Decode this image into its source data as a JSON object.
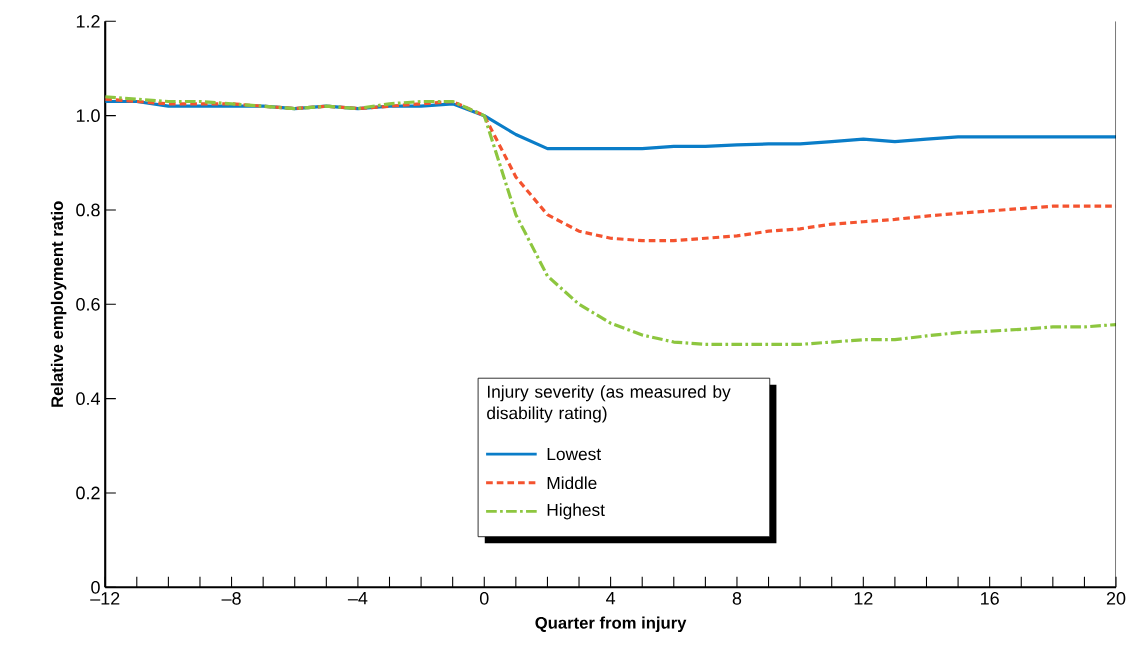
{
  "chart_data": {
    "type": "line",
    "xlabel": "Quarter from injury",
    "ylabel": "Relative employment ratio",
    "legend_title": "Injury severity (as measured by disability rating)",
    "x": [
      -12,
      -11,
      -10,
      -9,
      -8,
      -7,
      -6,
      -5,
      -4,
      -3,
      -2,
      -1,
      0,
      1,
      2,
      3,
      4,
      5,
      6,
      7,
      8,
      9,
      10,
      11,
      12,
      13,
      14,
      15,
      16,
      17,
      18,
      19,
      20
    ],
    "series": [
      {
        "name": "Lowest",
        "color": "#0a7dc8",
        "line_style": "solid",
        "values": [
          1.03,
          1.03,
          1.02,
          1.02,
          1.02,
          1.02,
          1.015,
          1.02,
          1.015,
          1.02,
          1.02,
          1.025,
          1.0,
          0.96,
          0.93,
          0.93,
          0.93,
          0.93,
          0.935,
          0.935,
          0.938,
          0.94,
          0.94,
          0.945,
          0.95,
          0.945,
          0.95,
          0.955,
          0.955,
          0.955,
          0.955,
          0.955,
          0.955
        ]
      },
      {
        "name": "Middle",
        "color": "#f4532f",
        "line_style": "dashed",
        "values": [
          1.035,
          1.03,
          1.025,
          1.025,
          1.025,
          1.02,
          1.015,
          1.02,
          1.015,
          1.02,
          1.025,
          1.03,
          1.0,
          0.87,
          0.79,
          0.755,
          0.74,
          0.735,
          0.735,
          0.74,
          0.745,
          0.755,
          0.76,
          0.77,
          0.775,
          0.78,
          0.787,
          0.793,
          0.798,
          0.803,
          0.808,
          0.808,
          0.808
        ]
      },
      {
        "name": "Highest",
        "color": "#8dc63f",
        "line_style": "dashdot",
        "values": [
          1.04,
          1.035,
          1.03,
          1.03,
          1.025,
          1.02,
          1.015,
          1.02,
          1.015,
          1.025,
          1.03,
          1.03,
          1.0,
          0.79,
          0.66,
          0.6,
          0.56,
          0.535,
          0.52,
          0.515,
          0.515,
          0.515,
          0.515,
          0.52,
          0.525,
          0.525,
          0.533,
          0.54,
          0.543,
          0.547,
          0.552,
          0.552,
          0.557
        ]
      }
    ],
    "xlim": [
      -12,
      20
    ],
    "ylim": [
      0,
      1.2
    ],
    "xticks": [
      {
        "value": -12,
        "label": "–12"
      },
      {
        "value": -11,
        "label": null
      },
      {
        "value": -10,
        "label": null
      },
      {
        "value": -9,
        "label": null
      },
      {
        "value": -8,
        "label": "–8"
      },
      {
        "value": -7,
        "label": null
      },
      {
        "value": -6,
        "label": null
      },
      {
        "value": -5,
        "label": null
      },
      {
        "value": -4,
        "label": "–4"
      },
      {
        "value": -3,
        "label": null
      },
      {
        "value": -2,
        "label": null
      },
      {
        "value": -1,
        "label": null
      },
      0,
      {
        "value": 1,
        "label": null
      },
      {
        "value": 2,
        "label": null
      },
      {
        "value": 3,
        "label": null
      },
      4,
      {
        "value": 5,
        "label": null
      },
      {
        "value": 6,
        "label": null
      },
      {
        "value": 7,
        "label": null
      },
      8,
      {
        "value": 9,
        "label": null
      },
      {
        "value": 10,
        "label": null
      },
      {
        "value": 11,
        "label": null
      },
      12,
      {
        "value": 13,
        "label": null
      },
      {
        "value": 14,
        "label": null
      },
      {
        "value": 15,
        "label": null
      },
      16,
      {
        "value": 17,
        "label": null
      },
      {
        "value": 18,
        "label": null
      },
      {
        "value": 19,
        "label": null
      },
      20
    ],
    "yticks": [
      0,
      0.2,
      0.4,
      0.6,
      0.8,
      {
        "value": 1.0,
        "label": "1.0"
      },
      1.2
    ],
    "grid": false,
    "legend": "bottom",
    "marker": "none"
  }
}
